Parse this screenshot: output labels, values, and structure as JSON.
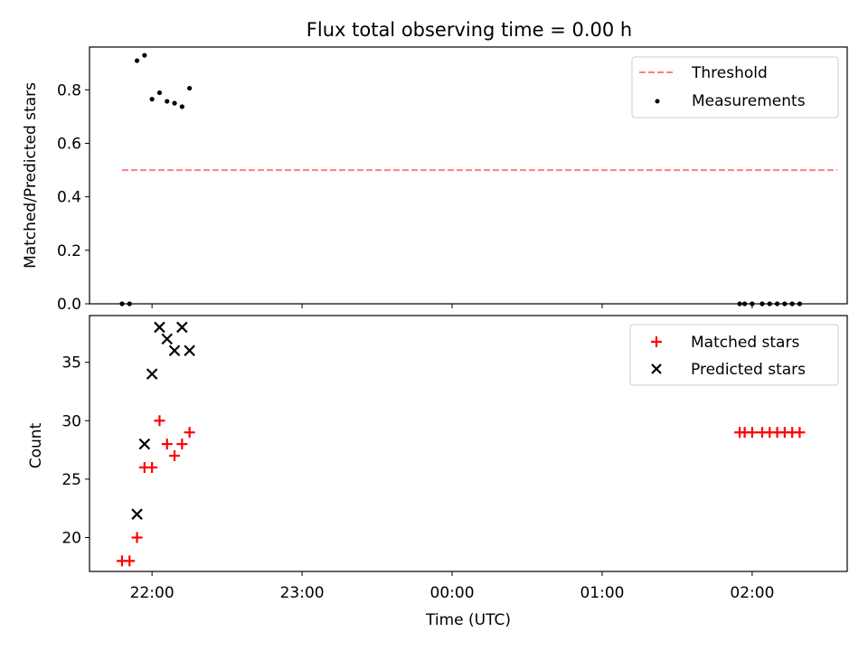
{
  "chart_data": [
    {
      "type": "scatter",
      "title": "Flux total observing time = 0.00 h",
      "xlabel": "",
      "ylabel": "Matched/Predicted stars",
      "xlim": [
        "21:35",
        "02:38"
      ],
      "ylim": [
        0,
        0.96
      ],
      "yticks": [
        0.0,
        0.2,
        0.4,
        0.6,
        0.8
      ],
      "yticklabels": [
        "0.0",
        "0.2",
        "0.4",
        "0.6",
        "0.8"
      ],
      "xticks": [
        "22:00",
        "23:00",
        "00:00",
        "01:00",
        "02:00"
      ],
      "legend_position": "top-right",
      "legend": [
        "Threshold",
        "Measurements"
      ],
      "threshold": {
        "name": "Threshold",
        "y": 0.5,
        "x_start": "21:48",
        "x_end": "02:34",
        "color": "#ff7f7f",
        "style": "dashed"
      },
      "series": [
        {
          "name": "Measurements",
          "color": "#000000",
          "marker": "dot",
          "points": [
            {
              "x": "21:48",
              "y": 0.0
            },
            {
              "x": "21:51",
              "y": 0.0
            },
            {
              "x": "21:54",
              "y": 0.909
            },
            {
              "x": "21:57",
              "y": 0.929
            },
            {
              "x": "22:00",
              "y": 0.765
            },
            {
              "x": "22:03",
              "y": 0.789
            },
            {
              "x": "22:06",
              "y": 0.757
            },
            {
              "x": "22:09",
              "y": 0.75
            },
            {
              "x": "22:12",
              "y": 0.737
            },
            {
              "x": "22:15",
              "y": 0.806
            },
            {
              "x": "01:55",
              "y": 0.0
            },
            {
              "x": "01:57",
              "y": 0.0
            },
            {
              "x": "02:00",
              "y": 0.0
            },
            {
              "x": "02:04",
              "y": 0.0
            },
            {
              "x": "02:07",
              "y": 0.0
            },
            {
              "x": "02:10",
              "y": 0.0
            },
            {
              "x": "02:13",
              "y": 0.0
            },
            {
              "x": "02:16",
              "y": 0.0
            },
            {
              "x": "02:19",
              "y": 0.0
            }
          ]
        }
      ]
    },
    {
      "type": "scatter",
      "title": "",
      "xlabel": "Time (UTC)",
      "ylabel": "Count",
      "xlim": [
        "21:35",
        "02:38"
      ],
      "ylim": [
        17.1,
        39.0
      ],
      "yticks": [
        20,
        25,
        30,
        35
      ],
      "yticklabels": [
        "20",
        "25",
        "30",
        "35"
      ],
      "xticks": [
        "22:00",
        "23:00",
        "00:00",
        "01:00",
        "02:00"
      ],
      "xticklabels": [
        "22:00",
        "23:00",
        "00:00",
        "01:00",
        "02:00"
      ],
      "legend_position": "top-right",
      "legend": [
        "Matched stars",
        "Predicted stars"
      ],
      "series": [
        {
          "name": "Matched stars",
          "color": "#ff0000",
          "marker": "plus",
          "points": [
            {
              "x": "21:48",
              "y": 18
            },
            {
              "x": "21:51",
              "y": 18
            },
            {
              "x": "21:54",
              "y": 20
            },
            {
              "x": "21:57",
              "y": 26
            },
            {
              "x": "22:00",
              "y": 26
            },
            {
              "x": "22:03",
              "y": 30
            },
            {
              "x": "22:06",
              "y": 28
            },
            {
              "x": "22:09",
              "y": 27
            },
            {
              "x": "22:12",
              "y": 28
            },
            {
              "x": "22:15",
              "y": 29
            },
            {
              "x": "01:55",
              "y": 29
            },
            {
              "x": "01:57",
              "y": 29
            },
            {
              "x": "02:00",
              "y": 29
            },
            {
              "x": "02:04",
              "y": 29
            },
            {
              "x": "02:07",
              "y": 29
            },
            {
              "x": "02:10",
              "y": 29
            },
            {
              "x": "02:13",
              "y": 29
            },
            {
              "x": "02:16",
              "y": 29
            },
            {
              "x": "02:19",
              "y": 29
            }
          ]
        },
        {
          "name": "Predicted stars",
          "color": "#000000",
          "marker": "x",
          "points": [
            {
              "x": "21:54",
              "y": 22
            },
            {
              "x": "21:57",
              "y": 28
            },
            {
              "x": "22:00",
              "y": 34
            },
            {
              "x": "22:03",
              "y": 38
            },
            {
              "x": "22:06",
              "y": 37
            },
            {
              "x": "22:09",
              "y": 36
            },
            {
              "x": "22:12",
              "y": 38
            },
            {
              "x": "22:15",
              "y": 36
            }
          ]
        }
      ]
    }
  ]
}
